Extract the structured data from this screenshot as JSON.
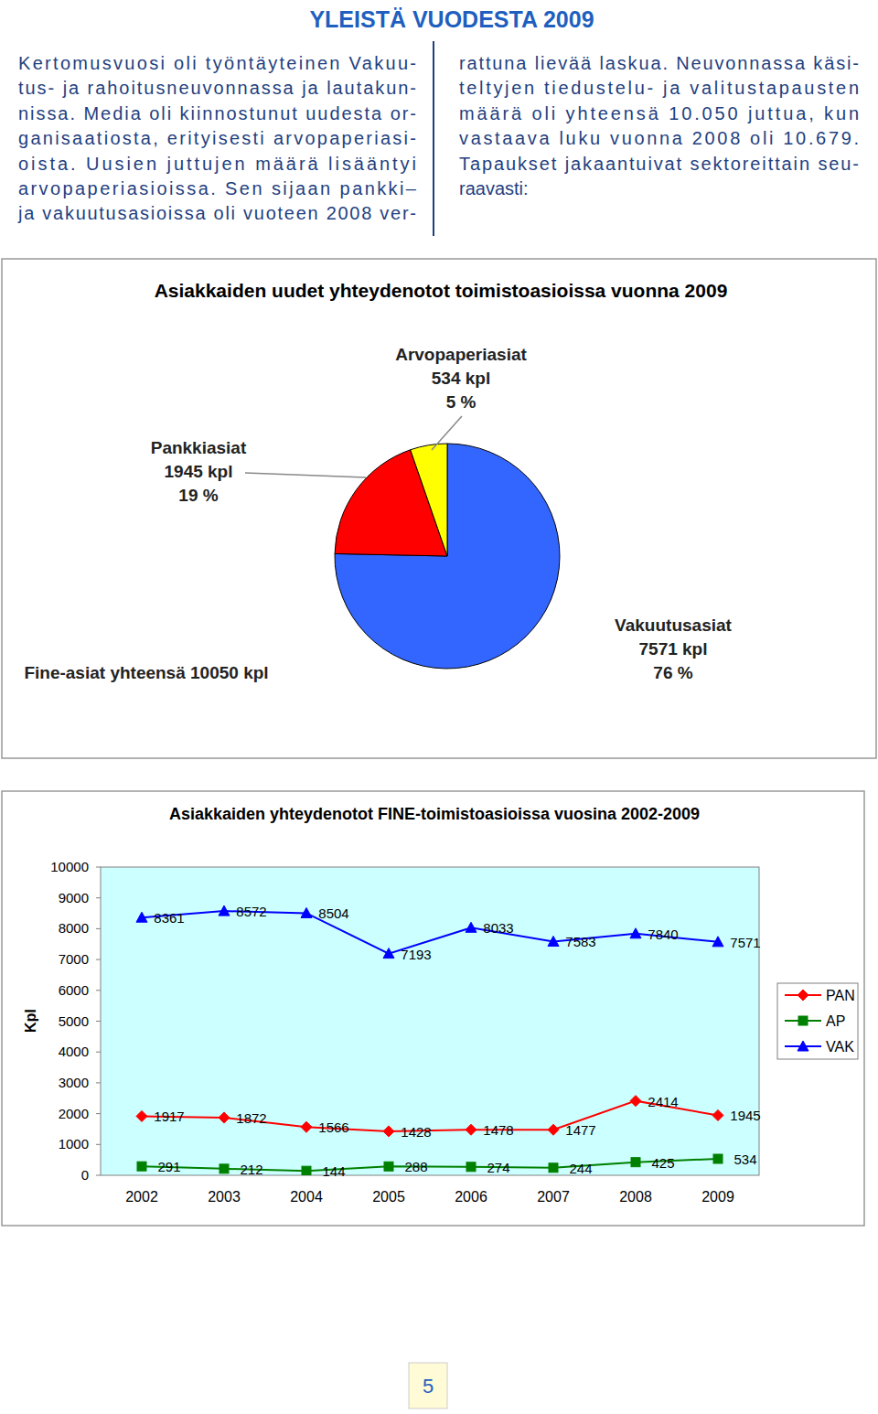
{
  "header": {
    "title": "YLEISTÄ VUODESTA 2009"
  },
  "columns": [
    {
      "lines": [
        "Kertomusvuosi oli työntäyteinen Vakuu-",
        "tus- ja rahoitusneuvonnassa ja lautakun-",
        "nissa. Media oli kiinnostunut uudesta or-",
        "ganisaatiosta, erityisesti arvopaperiasi-",
        "oista. Uusien juttujen määrä lisääntyi",
        "arvopaperiasioissa. Sen sijaan pankki–",
        "ja vakuutusasioissa oli vuoteen 2008 ver-"
      ]
    },
    {
      "lines": [
        "rattuna lievää laskua. Neuvonnassa käsi-",
        "teltyjen tiedustelu- ja valitustapausten",
        "määrä oli yhteensä 10.050 juttua, kun",
        "vastaava luku vuonna 2008 oli 10.679.",
        "Tapaukset jakaantuivat sektoreittain seu-",
        "raavasti:"
      ]
    }
  ],
  "chart_data": [
    {
      "type": "pie",
      "title": "Asiakkaiden uudet yhteydenotot toimistoasioissa vuonna 2009",
      "categories": [
        "Vakuutusasiat",
        "Pankkiasiat",
        "Arvopaperiasiat"
      ],
      "values": [
        7571,
        1945,
        534
      ],
      "value_labels": [
        "7571 kpl",
        "1945 kpl",
        "534 kpl"
      ],
      "percent_labels": [
        "76 %",
        "19 %",
        "5 %"
      ],
      "colors": [
        "#3366ff",
        "#ff0000",
        "#ffff00"
      ],
      "annotation": "Fine-asiat yhteensä 10050 kpl",
      "data_labels": true
    },
    {
      "type": "line",
      "title": "Asiakkaiden yhteydenotot FINE-toimistoasioissa vuosina 2002-2009",
      "y_label": "Kpl",
      "categories": [
        "2002",
        "2003",
        "2004",
        "2005",
        "2006",
        "2007",
        "2008",
        "2009"
      ],
      "series": [
        {
          "name": "PAN",
          "color": "#ff0000",
          "marker": "diamond",
          "values": [
            1917,
            1872,
            1566,
            1428,
            1478,
            1477,
            2414,
            1945
          ]
        },
        {
          "name": "AP",
          "color": "#008000",
          "marker": "square",
          "values": [
            291,
            212,
            144,
            288,
            274,
            244,
            425,
            534
          ]
        },
        {
          "name": "VAK",
          "color": "#0000ff",
          "marker": "triangle",
          "values": [
            8361,
            8572,
            8504,
            7193,
            8033,
            7583,
            7840,
            7571
          ]
        }
      ],
      "ylim": [
        0,
        10000
      ],
      "yticks": [
        0,
        1000,
        2000,
        3000,
        4000,
        5000,
        6000,
        7000,
        8000,
        9000,
        10000
      ],
      "legend": "right",
      "grid": false,
      "data_labels": true
    }
  ],
  "page_number": "5"
}
